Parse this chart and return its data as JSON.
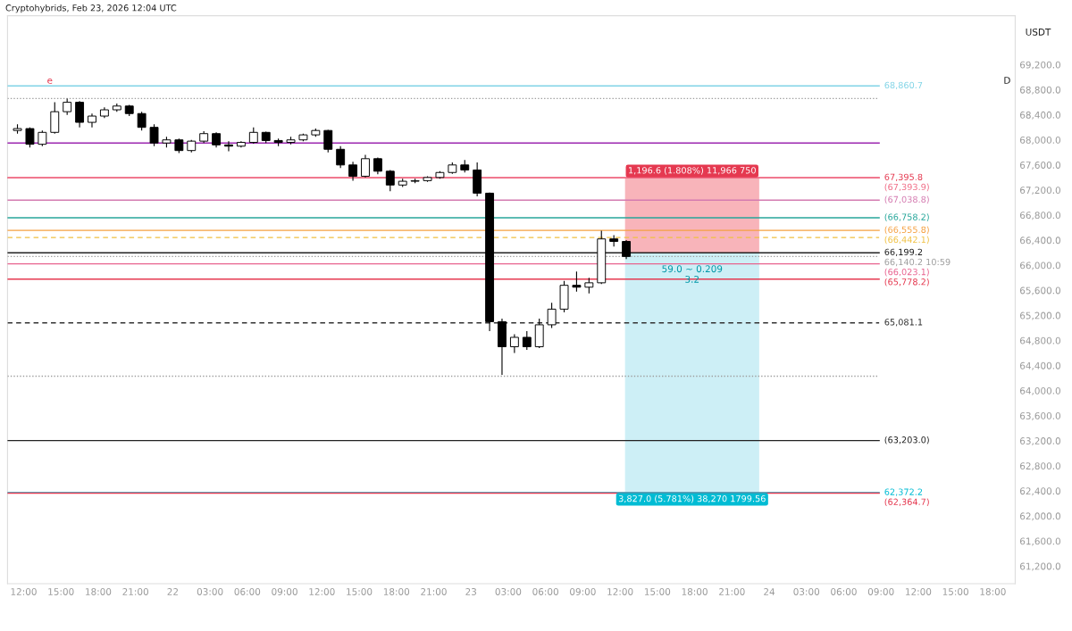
{
  "chart_data": {
    "type": "candlestick",
    "title": "Cryptohybrids, Feb 23, 2026 12:04 UTC",
    "ylabel": "USDT",
    "x": [
      "2026-02-21T11:30",
      "2026-02-21T12:30",
      "2026-02-21T13:30",
      "2026-02-21T14:30",
      "2026-02-21T15:30",
      "2026-02-21T16:30",
      "2026-02-21T17:30",
      "2026-02-21T18:30",
      "2026-02-21T19:30",
      "2026-02-21T20:30",
      "2026-02-21T21:30",
      "2026-02-21T22:30",
      "2026-02-21T23:30",
      "2026-02-22T00:30",
      "2026-02-22T01:30",
      "2026-02-22T02:30",
      "2026-02-22T03:30",
      "2026-02-22T04:30",
      "2026-02-22T05:30",
      "2026-02-22T06:30",
      "2026-02-22T07:30",
      "2026-02-22T08:30",
      "2026-02-22T09:30",
      "2026-02-22T10:30",
      "2026-02-22T11:30",
      "2026-02-22T12:30",
      "2026-02-22T13:30",
      "2026-02-22T14:30",
      "2026-02-22T15:30",
      "2026-02-22T16:30",
      "2026-02-22T17:30",
      "2026-02-22T18:30",
      "2026-02-22T19:30",
      "2026-02-22T20:30",
      "2026-02-22T21:30",
      "2026-02-22T22:30",
      "2026-02-22T23:30",
      "2026-02-23T00:30",
      "2026-02-23T01:30",
      "2026-02-23T02:30",
      "2026-02-23T03:30",
      "2026-02-23T04:30",
      "2026-02-23T05:30",
      "2026-02-23T06:30",
      "2026-02-23T07:30",
      "2026-02-23T08:30",
      "2026-02-23T09:30",
      "2026-02-23T10:30",
      "2026-02-23T11:30",
      "2026-02-23T12:30"
    ],
    "ohlc": [
      [
        68150,
        68250,
        68100,
        68180
      ],
      [
        68180,
        68200,
        67880,
        67930
      ],
      [
        67930,
        68150,
        67900,
        68120
      ],
      [
        68120,
        68600,
        68100,
        68450
      ],
      [
        68450,
        68660,
        68400,
        68600
      ],
      [
        68600,
        68620,
        68200,
        68280
      ],
      [
        68280,
        68420,
        68200,
        68380
      ],
      [
        68380,
        68520,
        68350,
        68480
      ],
      [
        68480,
        68580,
        68450,
        68540
      ],
      [
        68540,
        68560,
        68380,
        68420
      ],
      [
        68420,
        68450,
        68150,
        68200
      ],
      [
        68200,
        68250,
        67900,
        67950
      ],
      [
        67950,
        68050,
        67880,
        68000
      ],
      [
        68000,
        68020,
        67790,
        67830
      ],
      [
        67830,
        68000,
        67800,
        67980
      ],
      [
        67980,
        68140,
        67950,
        68100
      ],
      [
        68100,
        68120,
        67880,
        67920
      ],
      [
        67920,
        67980,
        67820,
        67900
      ],
      [
        67900,
        67980,
        67880,
        67960
      ],
      [
        67960,
        68200,
        67940,
        68120
      ],
      [
        68120,
        68130,
        67950,
        67990
      ],
      [
        67990,
        68020,
        67900,
        67960
      ],
      [
        67960,
        68050,
        67930,
        68000
      ],
      [
        68000,
        68100,
        67980,
        68080
      ],
      [
        68080,
        68180,
        68050,
        68150
      ],
      [
        68150,
        68160,
        67800,
        67850
      ],
      [
        67850,
        67900,
        67550,
        67600
      ],
      [
        67600,
        67650,
        67350,
        67420
      ],
      [
        67420,
        67760,
        67400,
        67700
      ],
      [
        67700,
        67720,
        67450,
        67500
      ],
      [
        67500,
        67520,
        67180,
        67280
      ],
      [
        67280,
        67380,
        67250,
        67340
      ],
      [
        67340,
        67380,
        67310,
        67350
      ],
      [
        67350,
        67420,
        67330,
        67400
      ],
      [
        67400,
        67500,
        67380,
        67480
      ],
      [
        67480,
        67640,
        67460,
        67600
      ],
      [
        67600,
        67680,
        67480,
        67520
      ],
      [
        67520,
        67640,
        67100,
        67150
      ],
      [
        67150,
        67160,
        64950,
        65100
      ],
      [
        65100,
        65150,
        64250,
        64700
      ],
      [
        64700,
        64900,
        64600,
        64850
      ],
      [
        64850,
        64950,
        64650,
        64700
      ],
      [
        64700,
        65150,
        64680,
        65050
      ],
      [
        65050,
        65400,
        65000,
        65300
      ],
      [
        65300,
        65750,
        65250,
        65680
      ],
      [
        65680,
        65900,
        65580,
        65650
      ],
      [
        65650,
        65800,
        65550,
        65720
      ],
      [
        65720,
        66550,
        65700,
        66420
      ],
      [
        66420,
        66480,
        66300,
        66380
      ],
      [
        66380,
        66400,
        66100,
        66140.2
      ]
    ],
    "series": [
      {
        "type": "bar",
        "x": [
          "2026-02-23T17:48",
          "2026-02-23T17:48"
        ],
        "base": [
          66199.2,
          62372.2
        ],
        "values": [
          1196.6,
          3827.0
        ],
        "colors": [
          "#f8b4ba",
          "#cdeff6"
        ],
        "value_labels": [
          "1,196.6 (1.808%) 11,966 750",
          "3,827.0 (5.781%) 38,270 1799.56"
        ]
      }
    ],
    "xlim": [
      "2026-02-21T10:42",
      "2026-02-24T19:48"
    ],
    "xticks": [
      {
        "value": "2026-02-21T12:00",
        "label": "12:00"
      },
      {
        "value": "2026-02-21T15:00",
        "label": "15:00"
      },
      {
        "value": "2026-02-21T18:00",
        "label": "18:00"
      },
      {
        "value": "2026-02-21T21:00",
        "label": "21:00"
      },
      {
        "value": "2026-02-22T00:00",
        "label": "22"
      },
      {
        "value": "2026-02-22T03:00",
        "label": "03:00"
      },
      {
        "value": "2026-02-22T06:00",
        "label": "06:00"
      },
      {
        "value": "2026-02-22T09:00",
        "label": "09:00"
      },
      {
        "value": "2026-02-22T12:00",
        "label": "12:00"
      },
      {
        "value": "2026-02-22T15:00",
        "label": "15:00"
      },
      {
        "value": "2026-02-22T18:00",
        "label": "18:00"
      },
      {
        "value": "2026-02-22T21:00",
        "label": "21:00"
      },
      {
        "value": "2026-02-23T00:00",
        "label": "23"
      },
      {
        "value": "2026-02-23T03:00",
        "label": "03:00"
      },
      {
        "value": "2026-02-23T06:00",
        "label": "06:00"
      },
      {
        "value": "2026-02-23T09:00",
        "label": "09:00"
      },
      {
        "value": "2026-02-23T12:00",
        "label": "12:00"
      },
      {
        "value": "2026-02-23T15:00",
        "label": "15:00"
      },
      {
        "value": "2026-02-23T18:00",
        "label": "18:00"
      },
      {
        "value": "2026-02-23T21:00",
        "label": "21:00"
      },
      {
        "value": "2026-02-24T00:00",
        "label": "24"
      },
      {
        "value": "2026-02-24T03:00",
        "label": "03:00"
      },
      {
        "value": "2026-02-24T06:00",
        "label": "06:00"
      },
      {
        "value": "2026-02-24T09:00",
        "label": "09:00"
      },
      {
        "value": "2026-02-24T12:00",
        "label": "12:00"
      },
      {
        "value": "2026-02-24T15:00",
        "label": "15:00"
      },
      {
        "value": "2026-02-24T18:00",
        "label": "18:00"
      }
    ],
    "ylim": [
      60920,
      69980
    ],
    "yticks": [
      {
        "value": 61200,
        "label": "61,200.0"
      },
      {
        "value": 61600,
        "label": "61,600.0"
      },
      {
        "value": 62000,
        "label": "62,000.0"
      },
      {
        "value": 62400,
        "label": "62,400.0"
      },
      {
        "value": 62800,
        "label": "62,800.0"
      },
      {
        "value": 63200,
        "label": "63,200.0"
      },
      {
        "value": 63600,
        "label": "63,600.0"
      },
      {
        "value": 64000,
        "label": "64,000.0"
      },
      {
        "value": 64400,
        "label": "64,400.0"
      },
      {
        "value": 64800,
        "label": "64,800.0"
      },
      {
        "value": 65200,
        "label": "65,200.0"
      },
      {
        "value": 65600,
        "label": "65,600.0"
      },
      {
        "value": 66000,
        "label": "66,000.0"
      },
      {
        "value": 66400,
        "label": "66,400.0"
      },
      {
        "value": 66800,
        "label": "66,800.0"
      },
      {
        "value": 67200,
        "label": "67,200.0"
      },
      {
        "value": 67600,
        "label": "67,600.0"
      },
      {
        "value": 68000,
        "label": "68,000.0"
      },
      {
        "value": 68400,
        "label": "68,400.0"
      },
      {
        "value": 68800,
        "label": "68,800.0"
      },
      {
        "value": 69200,
        "label": "69,200.0"
      }
    ],
    "ref_lines": [
      {
        "axis": "y",
        "value": 68860.7,
        "color": "#80d4e6",
        "line_style": "solid",
        "label": "68,860.7"
      },
      {
        "axis": "y",
        "value": 68660,
        "color": "#9e9e9e",
        "line_style": "dotted"
      },
      {
        "axis": "y",
        "value": 67950,
        "color": "#9c27b0",
        "line_style": "solid"
      },
      {
        "axis": "y",
        "value": 67395.8,
        "color": "#e53950",
        "line_style": "solid",
        "label": "67,395.8"
      },
      {
        "axis": "y",
        "value": 67393.9,
        "color": "#f06b85",
        "line_style": "solid",
        "label": "(67,393.9)"
      },
      {
        "axis": "y",
        "value": 67038.8,
        "color": "#d47bb0",
        "line_style": "solid",
        "label": "(67,038.8)"
      },
      {
        "axis": "y",
        "value": 66758.2,
        "color": "#26a69a",
        "line_style": "solid",
        "label": "(66,758.2)"
      },
      {
        "axis": "y",
        "value": 66555.8,
        "color": "#f5a040",
        "line_style": "solid",
        "label": "(66,555.8)"
      },
      {
        "axis": "y",
        "value": 66442.1,
        "color": "#f0c040",
        "line_style": "dashed",
        "label": "(66,442.1)"
      },
      {
        "axis": "y",
        "value": 66199.2,
        "color": "#222222",
        "line_style": "solid",
        "label": "66,199.2"
      },
      {
        "axis": "y",
        "value": 66140.2,
        "color": "#9e9e9e",
        "line_style": "dotted",
        "label": "66,140.2 10:59"
      },
      {
        "axis": "y",
        "value": 66023.1,
        "color": "#e8638f",
        "line_style": "solid",
        "label": "(66,023.1)"
      },
      {
        "axis": "y",
        "value": 65778.2,
        "color": "#e53950",
        "line_style": "solid",
        "label": "(65,778.2)"
      },
      {
        "axis": "y",
        "value": 65081.1,
        "color": "#333333",
        "line_style": "dashed",
        "label": "65,081.1"
      },
      {
        "axis": "y",
        "value": 64230,
        "color": "#9e9e9e",
        "line_style": "dotted"
      },
      {
        "axis": "y",
        "value": 63203.0,
        "color": "#222222",
        "line_style": "solid",
        "label": "(63,203.0)"
      },
      {
        "axis": "y",
        "value": 62372.2,
        "color": "#00bcd4",
        "line_style": "solid",
        "label": "62,372.2"
      },
      {
        "axis": "y",
        "value": 62364.7,
        "color": "#e53950",
        "line_style": "solid",
        "label": "(62,364.7)"
      }
    ],
    "annotations": [
      "e",
      "D",
      {
        "text": "59.0 ~ 0.209\n3.2",
        "x": "2026-02-23T17:48",
        "y": 66140.2
      }
    ]
  }
}
